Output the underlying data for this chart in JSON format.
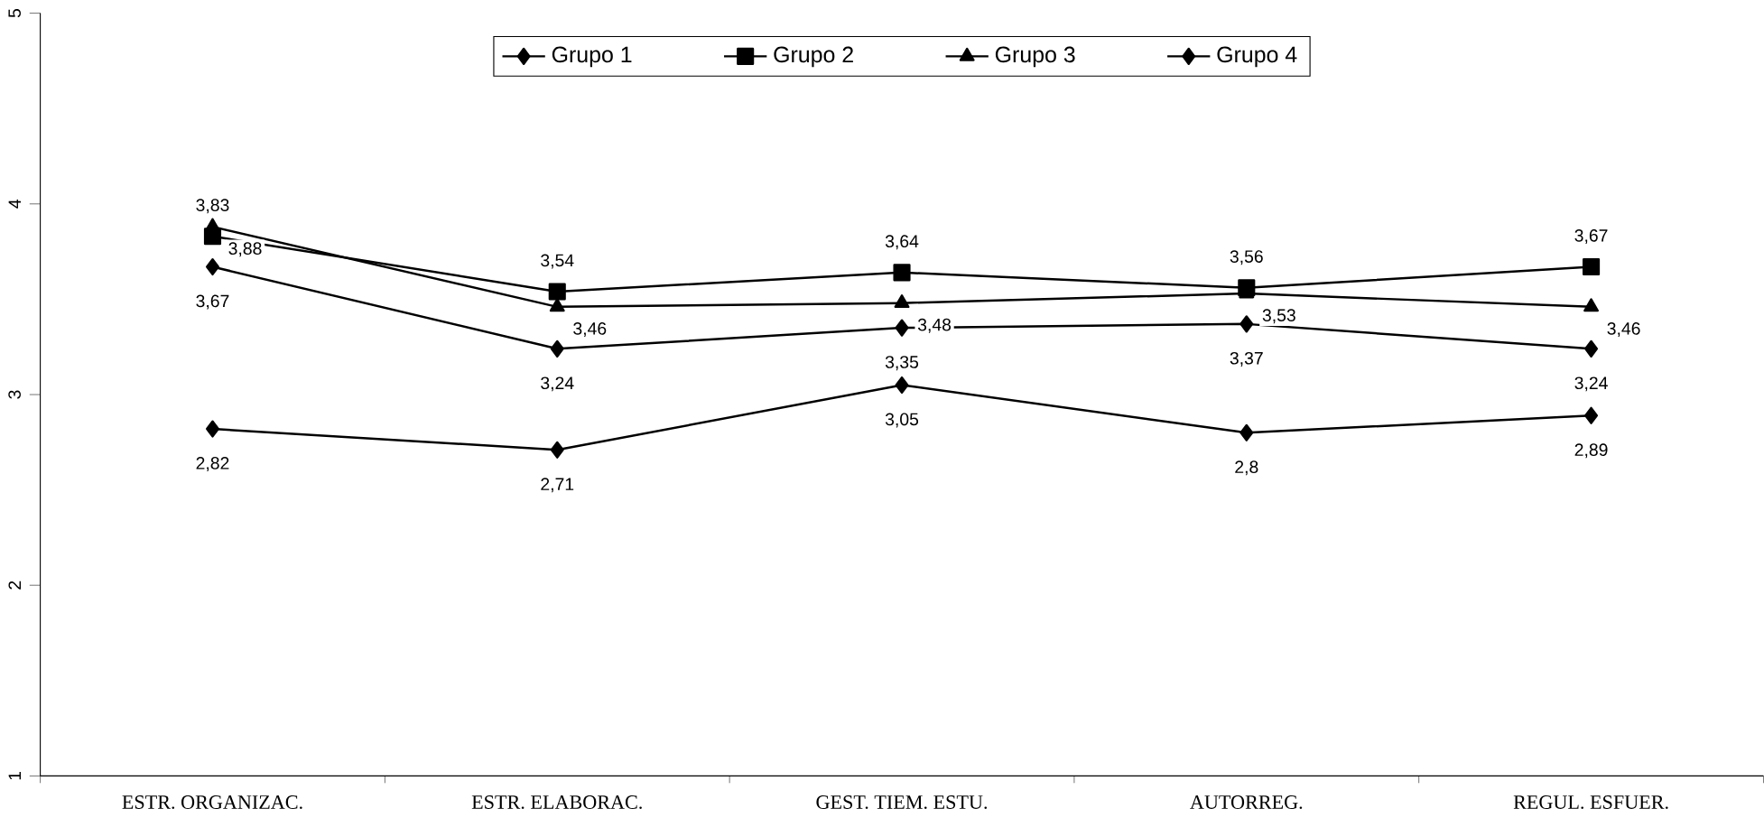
{
  "chart_data": {
    "type": "line",
    "categories": [
      "ESTR. ORGANIZAC.",
      "ESTR. ELABORAC.",
      "GEST. TIEM. ESTU.",
      "AUTORREG.",
      "REGUL. ESFUER."
    ],
    "series": [
      {
        "name": "Grupo 1",
        "color": "#000000",
        "marker": "diamond",
        "values": [
          3.67,
          3.24,
          3.35,
          3.37,
          3.24
        ],
        "value_labels": [
          "3,67",
          "3,24",
          "3,35",
          "3,37",
          "3,24"
        ]
      },
      {
        "name": "Grupo 2",
        "color": "#000000",
        "marker": "square",
        "values": [
          3.83,
          3.54,
          3.64,
          3.56,
          3.67
        ],
        "value_labels": [
          "3,83",
          "3,54",
          "3,64",
          "3,56",
          "3,67"
        ]
      },
      {
        "name": "Grupo 3",
        "color": "#000000",
        "marker": "triangle",
        "values": [
          3.88,
          3.46,
          3.48,
          3.53,
          3.46
        ],
        "value_labels": [
          "3,88",
          "3,46",
          "3,48",
          "3,53",
          "3,46"
        ]
      },
      {
        "name": "Grupo 4",
        "color": "#000000",
        "marker": "diamond",
        "values": [
          2.82,
          2.71,
          3.05,
          2.8,
          2.89
        ],
        "value_labels": [
          "2,82",
          "2,71",
          "3,05",
          "2,8",
          "2,89"
        ]
      }
    ],
    "ylim": [
      1,
      5
    ],
    "yticks": [
      1,
      2,
      3,
      4,
      5
    ],
    "grid": false,
    "legend": "top",
    "line_style": "solid"
  }
}
